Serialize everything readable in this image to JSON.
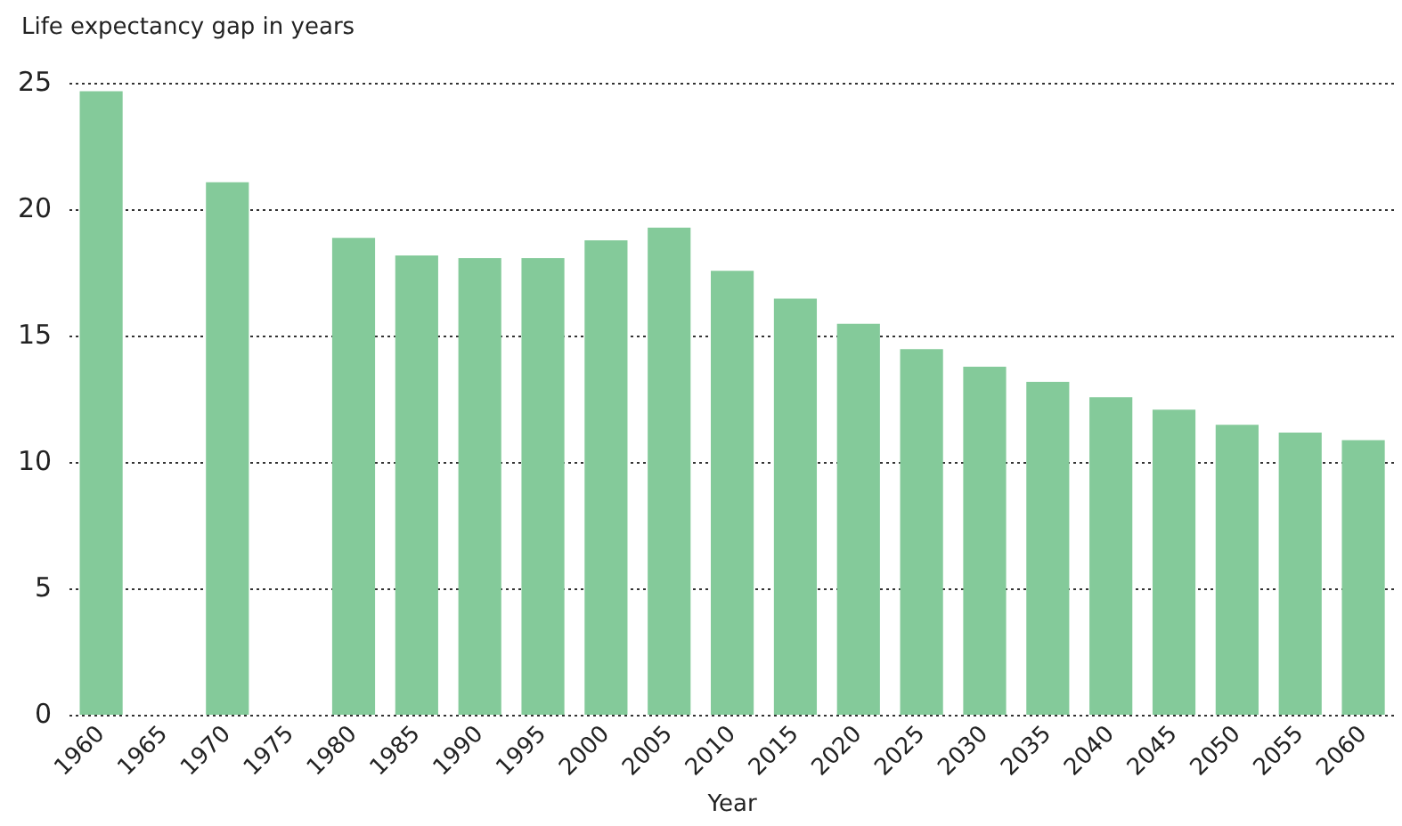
{
  "chart_data": {
    "type": "bar",
    "ylabel": "Life expectancy gap in years",
    "xlabel": "Year",
    "categories": [
      "1960",
      "1965",
      "1970",
      "1975",
      "1980",
      "1985",
      "1990",
      "1995",
      "2000",
      "2005",
      "2010",
      "2015",
      "2020",
      "2025",
      "2030",
      "2035",
      "2040",
      "2045",
      "2050",
      "2055",
      "2060"
    ],
    "series": [
      {
        "color": "#84ca9a",
        "values": [
          24.7,
          null,
          21.1,
          null,
          18.9,
          18.2,
          18.1,
          18.1,
          18.8,
          19.3,
          17.6,
          16.5,
          15.5,
          14.5,
          13.8,
          13.2,
          12.6,
          12.1,
          11.5,
          11.2,
          10.9
        ]
      }
    ],
    "ylim": [
      0,
      25
    ],
    "yticks": [
      0,
      5,
      10,
      15,
      20,
      25
    ],
    "grid": "y",
    "legend": false
  }
}
